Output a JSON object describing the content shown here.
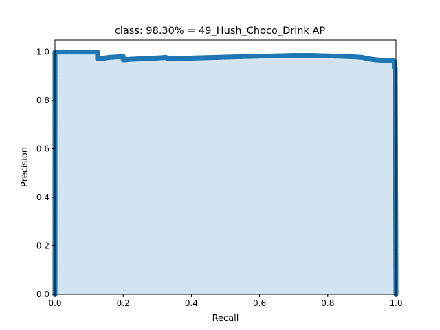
{
  "chart_data": {
    "type": "area",
    "title": "class: 98.30% = 49_Hush_Choco_Drink AP",
    "xlabel": "Recall",
    "ylabel": "Precision",
    "xlim": [
      0.0,
      1.0
    ],
    "ylim": [
      0.0,
      1.05
    ],
    "xticks": [
      "0.0",
      "0.2",
      "0.4",
      "0.6",
      "0.8",
      "1.0"
    ],
    "yticks": [
      "0.0",
      "0.2",
      "0.4",
      "0.6",
      "0.8",
      "1.0"
    ],
    "grid": false,
    "legend": "none",
    "colors": {
      "line": "#1f77b4",
      "fill": "#1f77b4",
      "fill_alpha": 0.2
    },
    "series": [
      {
        "x": [
          0.0,
          0.0,
          0.01,
          0.03,
          0.06,
          0.09,
          0.12,
          0.125,
          0.125,
          0.14,
          0.16,
          0.18,
          0.2,
          0.2,
          0.205,
          0.22,
          0.25,
          0.28,
          0.31,
          0.325,
          0.33,
          0.36,
          0.4,
          0.45,
          0.5,
          0.55,
          0.6,
          0.65,
          0.7,
          0.75,
          0.8,
          0.84,
          0.88,
          0.9,
          0.92,
          0.94,
          0.96,
          0.98,
          0.99,
          0.995,
          0.995,
          0.998,
          1.0
        ],
        "y": [
          0.0,
          1.0,
          1.0,
          1.0,
          1.0,
          1.0,
          1.0,
          1.0,
          0.972,
          0.974,
          0.978,
          0.98,
          0.982,
          0.968,
          0.968,
          0.97,
          0.972,
          0.974,
          0.976,
          0.978,
          0.972,
          0.972,
          0.975,
          0.977,
          0.979,
          0.981,
          0.983,
          0.984,
          0.986,
          0.986,
          0.984,
          0.982,
          0.98,
          0.978,
          0.972,
          0.968,
          0.966,
          0.966,
          0.964,
          0.962,
          0.935,
          0.935,
          0.0
        ]
      }
    ]
  }
}
